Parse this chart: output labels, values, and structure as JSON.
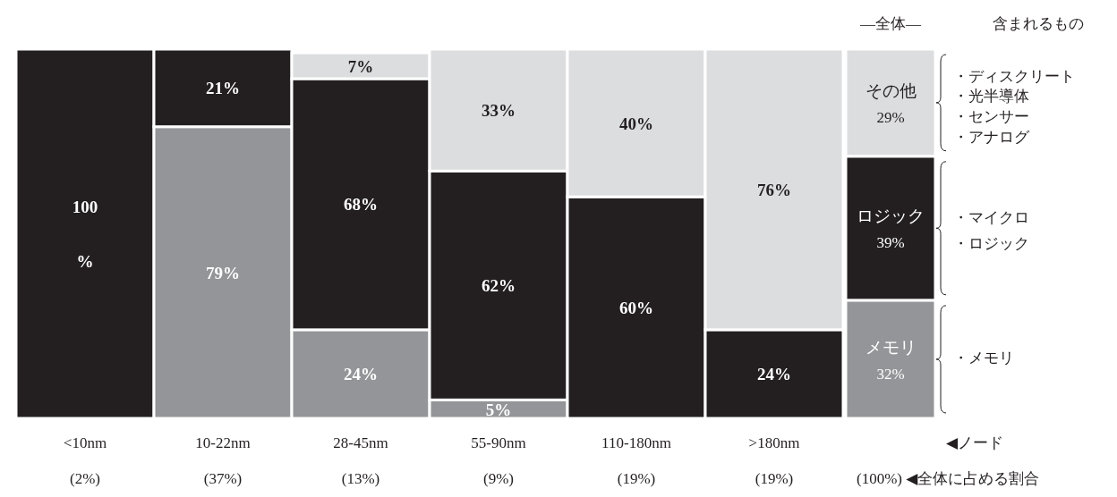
{
  "chart_data": [
    {
      "type": "bar",
      "stacked": true,
      "categories": [
        "<10nm\n(2%)",
        "10-22nm\n(37%)",
        "28-45nm\n(13%)",
        "55-90nm\n(9%)",
        "110-180nm\n(19%)",
        ">180nm\n(19%)"
      ],
      "series": [
        {
          "color": "#939598",
          "values": [
            null,
            79,
            24,
            5,
            null,
            null
          ],
          "value_labels": [
            null,
            "79%",
            "24%",
            "5%",
            null,
            null
          ]
        },
        {
          "color": "#231f20",
          "values": [
            100,
            21,
            68,
            62,
            60,
            24
          ],
          "value_labels": [
            "100\n%",
            "21%",
            "68%",
            "62%",
            "60%",
            "24%"
          ]
        },
        {
          "color": "#dcdddf",
          "values": [
            null,
            null,
            7,
            33,
            40,
            76
          ],
          "value_labels": [
            null,
            null,
            "7%",
            "33%",
            "40%",
            "76%"
          ]
        }
      ]
    },
    {
      "type": "bar",
      "stacked": true,
      "title": "—全体—",
      "categories": [
        null
      ],
      "series": [
        {
          "name": "メモリ",
          "color": "#939598",
          "values": [
            32
          ],
          "value_labels": [
            "32%"
          ]
        },
        {
          "name": "ロジック",
          "color": "#231f20",
          "values": [
            39
          ],
          "value_labels": [
            "39%"
          ]
        },
        {
          "name": "その他",
          "color": "#dcdddf",
          "values": [
            29
          ],
          "value_labels": [
            "29%"
          ]
        }
      ],
      "annotations": [
        "含まれるもの",
        "◀ノード",
        "(100%) ◀全体に占める割合",
        "・ディスクリート",
        "・光半導体",
        "・センサー",
        "・アナログ",
        "・マイクロ",
        "・ロジック",
        "・メモリ"
      ]
    }
  ]
}
